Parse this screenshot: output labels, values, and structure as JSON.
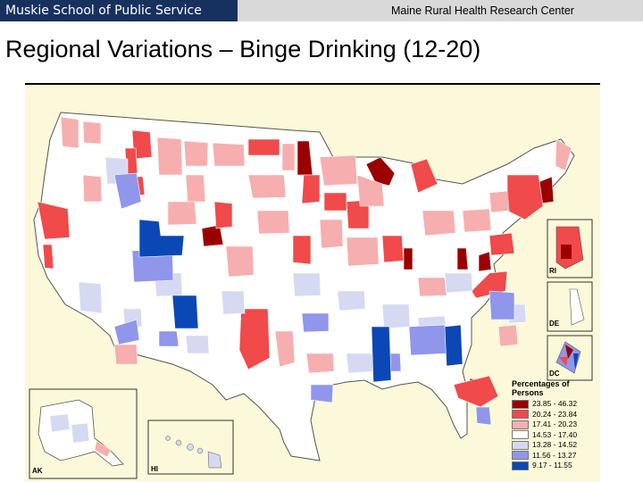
{
  "header": {
    "left_label": "Muskie School of Public Service",
    "right_label": "Maine Rural Health Research Center"
  },
  "slide": {
    "title": "Regional Variations – Binge Drinking (12-20)"
  },
  "map": {
    "inset_labels": {
      "alaska": "AK",
      "hawaii": "HI",
      "rhode_island": "RI",
      "delaware": "DE",
      "dc": "DC"
    },
    "legend": {
      "title_line1": "Percentages of",
      "title_line2": "Persons",
      "items": [
        {
          "range": "23.85 - 46.32",
          "color": "#9b0000"
        },
        {
          "range": "20.24 - 23.84",
          "color": "#f04a4a"
        },
        {
          "range": "17.41 - 20.23",
          "color": "#f7aeae"
        },
        {
          "range": "14.53 - 17.40",
          "color": "#ffffff"
        },
        {
          "range": "13.28 - 14.52",
          "color": "#d6d9f2"
        },
        {
          "range": "11.56 - 13.27",
          "color": "#8f96ec"
        },
        {
          "range": "9.17 - 11.55",
          "color": "#0b47b5"
        }
      ]
    }
  }
}
